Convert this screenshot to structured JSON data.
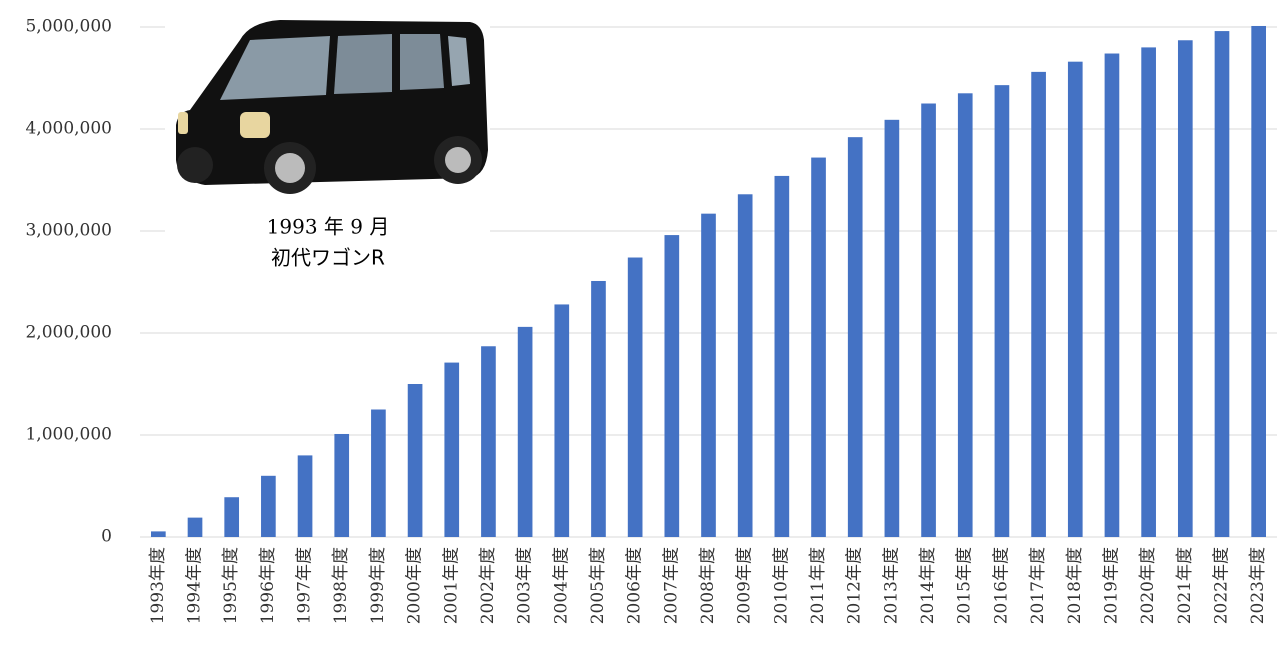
{
  "chart_data": {
    "type": "bar",
    "categories": [
      "1993年度",
      "1994年度",
      "1995年度",
      "1996年度",
      "1997年度",
      "1998年度",
      "1999年度",
      "2000年度",
      "2001年度",
      "2002年度",
      "2003年度",
      "2004年度",
      "2005年度",
      "2006年度",
      "2007年度",
      "2008年度",
      "2009年度",
      "2010年度",
      "2011年度",
      "2012年度",
      "2013年度",
      "2014年度",
      "2015年度",
      "2016年度",
      "2017年度",
      "2018年度",
      "2019年度",
      "2020年度",
      "2021年度",
      "2022年度",
      "2023年度"
    ],
    "values": [
      55000,
      190000,
      390000,
      600000,
      800000,
      1010000,
      1250000,
      1500000,
      1710000,
      1870000,
      2060000,
      2280000,
      2510000,
      2740000,
      2960000,
      3170000,
      3360000,
      3540000,
      3720000,
      3920000,
      4090000,
      4250000,
      4350000,
      4430000,
      4560000,
      4660000,
      4740000,
      4800000,
      4870000,
      4960000,
      5010000
    ],
    "color": "#4472c4",
    "ylim": [
      0,
      5000000
    ],
    "yticks": [
      0,
      {
        "value": 1000000,
        "label": "1,000,000"
      },
      {
        "value": 2000000,
        "label": "2,000,000"
      },
      {
        "value": 3000000,
        "label": "3,000,000"
      },
      {
        "value": 4000000,
        "label": "4,000,000"
      },
      {
        "value": 5000000,
        "label": "5,000,000"
      }
    ],
    "grid": true,
    "annotations": [
      "1993 年 9 月",
      "初代ワゴンR"
    ]
  }
}
